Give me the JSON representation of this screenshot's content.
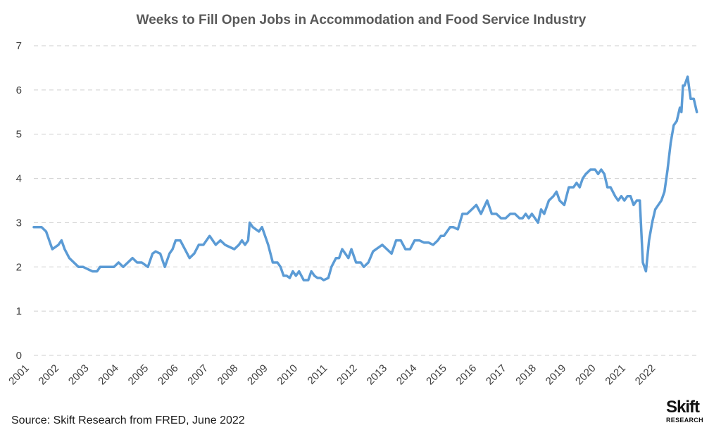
{
  "chart_data": {
    "type": "line",
    "title": "Weeks to Fill Open Jobs in Accommodation and Food Service Industry",
    "xlabel": "",
    "ylabel": "",
    "ylim": [
      0,
      7
    ],
    "yticks": [
      "0",
      "1",
      "2",
      "3",
      "4",
      "5",
      "6",
      "7"
    ],
    "xlim": [
      2001.0,
      2022.5
    ],
    "xticks": [
      "2001",
      "2002",
      "2003",
      "2004",
      "2005",
      "2006",
      "2007",
      "2008",
      "2009",
      "2010",
      "2011",
      "2012",
      "2013",
      "2014",
      "2015",
      "2016",
      "2017",
      "2018",
      "2019",
      "2020",
      "2021",
      "2022"
    ],
    "grid": "horizontal dashed",
    "legend": "none",
    "line_color": "#5b9bd5",
    "series": [
      {
        "x": [
          2001.0,
          2001.25,
          2001.4,
          2001.5,
          2001.6,
          2001.8,
          2001.9,
          2002.0,
          2002.15,
          2002.3,
          2002.45,
          2002.6,
          2002.75,
          2002.9,
          2003.05,
          2003.15,
          2003.25,
          2003.45,
          2003.6,
          2003.75,
          2003.9,
          2004.05,
          2004.2,
          2004.35,
          2004.5,
          2004.7,
          2004.85,
          2004.95,
          2005.1,
          2005.25,
          2005.4,
          2005.5,
          2005.6,
          2005.75,
          2005.9,
          2006.05,
          2006.2,
          2006.35,
          2006.5,
          2006.7,
          2006.9,
          2007.05,
          2007.2,
          2007.35,
          2007.5,
          2007.65,
          2007.75,
          2007.85,
          2007.95,
          2008.0,
          2008.1,
          2008.2,
          2008.3,
          2008.4,
          2008.5,
          2008.6,
          2008.75,
          2008.9,
          2009.0,
          2009.1,
          2009.2,
          2009.3,
          2009.4,
          2009.5,
          2009.6,
          2009.75,
          2009.9,
          2010.0,
          2010.1,
          2010.2,
          2010.3,
          2010.4,
          2010.55,
          2010.65,
          2010.8,
          2010.9,
          2011.0,
          2011.1,
          2011.2,
          2011.3,
          2011.45,
          2011.6,
          2011.7,
          2011.85,
          2012.0,
          2012.1,
          2012.2,
          2012.3,
          2012.45,
          2012.6,
          2012.75,
          2012.9,
          2013.05,
          2013.2,
          2013.35,
          2013.5,
          2013.65,
          2013.8,
          2013.95,
          2014.1,
          2014.2,
          2014.3,
          2014.4,
          2014.5,
          2014.6,
          2014.75,
          2014.9,
          2015.05,
          2015.2,
          2015.35,
          2015.5,
          2015.7,
          2015.85,
          2016.0,
          2016.15,
          2016.3,
          2016.45,
          2016.6,
          2016.75,
          2016.85,
          2016.95,
          2017.05,
          2017.15,
          2017.25,
          2017.35,
          2017.45,
          2017.55,
          2017.7,
          2017.85,
          2017.95,
          2018.05,
          2018.2,
          2018.35,
          2018.5,
          2018.6,
          2018.7,
          2018.8,
          2018.9,
          2019.05,
          2019.2,
          2019.3,
          2019.4,
          2019.5,
          2019.6,
          2019.7,
          2019.85,
          2019.95,
          2020.05,
          2020.15,
          2020.25,
          2020.35,
          2020.45,
          2020.55,
          2020.65,
          2020.75,
          2020.85,
          2020.95,
          2021.05,
          2021.15,
          2021.25,
          2021.35,
          2021.45,
          2021.55,
          2021.65,
          2021.75,
          2021.85,
          2021.95,
          2022.0,
          2022.05,
          2022.1,
          2022.15,
          2022.2,
          2022.3,
          2022.4,
          2022.5
        ],
        "y": [
          2.9,
          2.9,
          2.8,
          2.6,
          2.4,
          2.5,
          2.6,
          2.4,
          2.2,
          2.1,
          2.0,
          2.0,
          1.95,
          1.9,
          1.9,
          2.0,
          2.0,
          2.0,
          2.0,
          2.1,
          2.0,
          2.1,
          2.2,
          2.1,
          2.1,
          2.0,
          2.3,
          2.35,
          2.3,
          2.0,
          2.3,
          2.4,
          2.6,
          2.6,
          2.4,
          2.2,
          2.3,
          2.5,
          2.5,
          2.7,
          2.5,
          2.6,
          2.5,
          2.45,
          2.4,
          2.5,
          2.6,
          2.5,
          2.6,
          3.0,
          2.9,
          2.85,
          2.8,
          2.9,
          2.7,
          2.5,
          2.1,
          2.1,
          2.0,
          1.8,
          1.8,
          1.75,
          1.9,
          1.8,
          1.9,
          1.7,
          1.7,
          1.9,
          1.8,
          1.75,
          1.75,
          1.7,
          1.75,
          2.0,
          2.2,
          2.2,
          2.4,
          2.3,
          2.2,
          2.4,
          2.1,
          2.1,
          2.0,
          2.1,
          2.35,
          2.4,
          2.45,
          2.5,
          2.4,
          2.3,
          2.6,
          2.6,
          2.4,
          2.4,
          2.6,
          2.6,
          2.55,
          2.55,
          2.5,
          2.6,
          2.7,
          2.7,
          2.8,
          2.9,
          2.9,
          2.85,
          3.2,
          3.2,
          3.3,
          3.4,
          3.2,
          3.5,
          3.2,
          3.2,
          3.1,
          3.1,
          3.2,
          3.2,
          3.1,
          3.1,
          3.2,
          3.1,
          3.2,
          3.1,
          3.0,
          3.3,
          3.2,
          3.5,
          3.6,
          3.7,
          3.5,
          3.4,
          3.8,
          3.8,
          3.9,
          3.8,
          4.0,
          4.1,
          4.2,
          4.2,
          4.1,
          4.2,
          4.1,
          3.8,
          3.8,
          3.6,
          3.5,
          3.6,
          3.5,
          3.6,
          3.6,
          3.4,
          3.5,
          3.5,
          2.1,
          1.9,
          2.6,
          3.0,
          3.3,
          3.4,
          3.5,
          3.7,
          4.2,
          4.8,
          5.2,
          5.3,
          5.6,
          5.5,
          6.1,
          6.1,
          6.2,
          6.3,
          5.8,
          5.8,
          5.5
        ]
      }
    ]
  },
  "footer": {
    "source": "Source: Skift Research from FRED, June 2022",
    "logo_main": "Skift",
    "logo_sub": "RESEARCH"
  }
}
